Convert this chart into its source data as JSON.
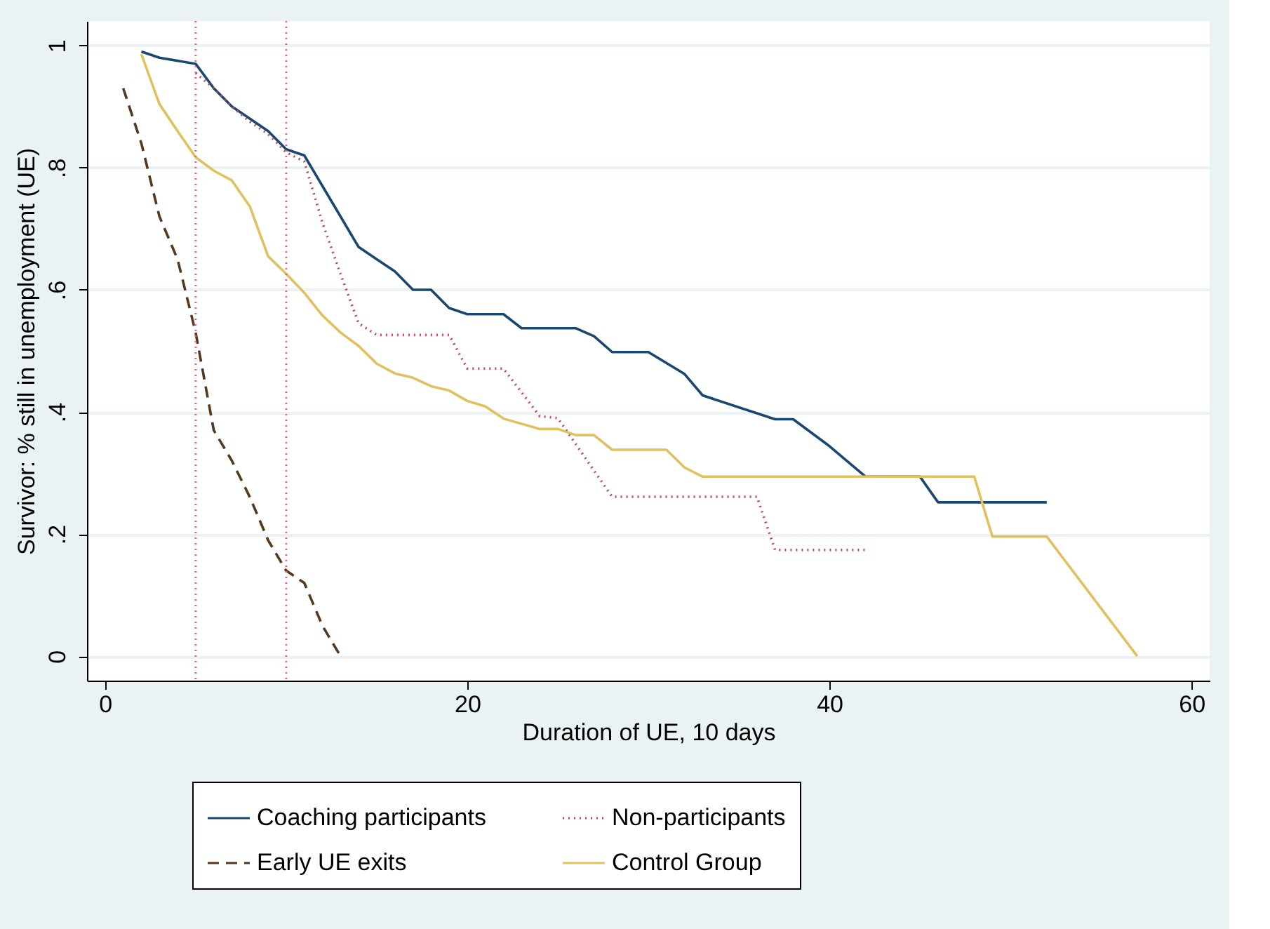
{
  "chart_data": {
    "type": "line",
    "xlabel": "Duration of UE, 10 days",
    "ylabel": "Survivor: % still in unemployment (UE)",
    "xlim": [
      -1,
      61
    ],
    "xticks": [
      0,
      20,
      40,
      60
    ],
    "ylim": [
      -0.04,
      1.04
    ],
    "yticks": [
      {
        "value": 0,
        "label": "0"
      },
      {
        "value": 0.2,
        "label": ".2"
      },
      {
        "value": 0.4,
        "label": ".4"
      },
      {
        "value": 0.6,
        "label": ".6"
      },
      {
        "value": 0.8,
        "label": ".8"
      },
      {
        "value": 1,
        "label": "1"
      }
    ],
    "grid": "y",
    "legend": "bottom",
    "series": [
      {
        "name": "Coaching participants",
        "color": "#1a476f",
        "line_style": "solid",
        "x": [
          2,
          3,
          5,
          6,
          7,
          8,
          9,
          10,
          11,
          12,
          13,
          14,
          15,
          16,
          17,
          18,
          19,
          20,
          22,
          23,
          26,
          27,
          28,
          30,
          32,
          33,
          37,
          38,
          40,
          41,
          42,
          45,
          46,
          52
        ],
        "values": [
          0.99,
          0.98,
          0.97,
          0.93,
          0.9,
          0.88,
          0.86,
          0.83,
          0.82,
          0.77,
          0.72,
          0.67,
          0.65,
          0.63,
          0.6,
          0.6,
          0.57,
          0.56,
          0.56,
          0.537,
          0.537,
          0.524,
          0.498,
          0.498,
          0.462,
          0.427,
          0.388,
          0.388,
          0.344,
          0.319,
          0.294,
          0.294,
          0.252,
          0.252
        ]
      },
      {
        "name": "Early UE exits",
        "color": "#55391f",
        "line_style": "dashed",
        "x": [
          1,
          2,
          3,
          4,
          5,
          6,
          7,
          8,
          9,
          10,
          11,
          12,
          13
        ],
        "values": [
          0.93,
          0.84,
          0.72,
          0.65,
          0.53,
          0.37,
          0.32,
          0.26,
          0.19,
          0.14,
          0.12,
          0.05,
          0.0
        ]
      },
      {
        "name": "Non-participants",
        "color": "#c0475e",
        "line_style": "dotted",
        "x": [
          5,
          6,
          7,
          8,
          9,
          10,
          11,
          12,
          13,
          14,
          15,
          19,
          20,
          22,
          24,
          25,
          28,
          36,
          37,
          42
        ],
        "values": [
          0.955,
          0.93,
          0.9,
          0.875,
          0.855,
          0.825,
          0.81,
          0.71,
          0.626,
          0.545,
          0.526,
          0.526,
          0.471,
          0.471,
          0.393,
          0.39,
          0.261,
          0.261,
          0.174,
          0.174
        ]
      },
      {
        "name": "Control Group",
        "color": "#e0c15f",
        "line_style": "solid",
        "x": [
          2,
          3,
          4,
          5,
          6,
          7,
          8,
          9,
          10,
          11,
          12,
          13,
          14,
          15,
          16,
          17,
          18,
          19,
          20,
          21,
          22,
          24,
          25,
          26,
          27,
          28,
          31,
          32,
          33,
          48,
          49,
          52,
          57
        ],
        "values": [
          0.986,
          0.904,
          0.86,
          0.817,
          0.795,
          0.779,
          0.736,
          0.655,
          0.626,
          0.595,
          0.558,
          0.53,
          0.508,
          0.479,
          0.463,
          0.456,
          0.442,
          0.435,
          0.418,
          0.409,
          0.389,
          0.372,
          0.372,
          0.362,
          0.362,
          0.338,
          0.338,
          0.309,
          0.294,
          0.294,
          0.196,
          0.196,
          0.0
        ]
      }
    ],
    "ref_lines": [
      {
        "axis": "x",
        "value": 5,
        "color": "#e0607e",
        "line_style": "dotted"
      },
      {
        "axis": "x",
        "value": 10,
        "color": "#e0607e",
        "line_style": "dotted"
      }
    ]
  }
}
